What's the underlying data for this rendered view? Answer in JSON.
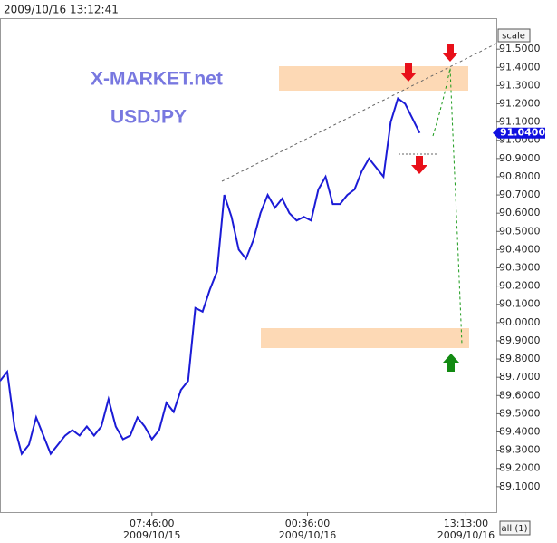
{
  "chart_data": {
    "type": "line",
    "timestamp": "2009/10/16 13:12:41",
    "title": "X-MARKET.net",
    "subtitle": "USDJPY",
    "scale_button": "scale",
    "all_button": "all (1)",
    "price_marker": {
      "value": 91.04,
      "label": "91.0400"
    },
    "series": [
      {
        "name": "USDJPY",
        "color": "#1b1bd6",
        "values": [
          89.68,
          89.73,
          89.43,
          89.28,
          89.33,
          89.48,
          89.38,
          89.28,
          89.33,
          89.38,
          89.41,
          89.38,
          89.43,
          89.38,
          89.43,
          89.58,
          89.43,
          89.36,
          89.38,
          89.48,
          89.43,
          89.36,
          89.41,
          89.56,
          89.51,
          89.63,
          89.68,
          90.08,
          90.06,
          90.18,
          90.28,
          90.7,
          90.58,
          90.4,
          90.35,
          90.45,
          90.6,
          90.7,
          90.63,
          90.68,
          90.6,
          90.56,
          90.58,
          90.56,
          90.73,
          90.8,
          90.65,
          90.65,
          90.7,
          90.73,
          90.83,
          90.9,
          90.85,
          90.8,
          91.1,
          91.23,
          91.2,
          91.12,
          91.04
        ]
      }
    ],
    "xlim": [
      0,
      68.6
    ],
    "xticks": [
      {
        "value": 21,
        "label": "07:46:00"
      },
      {
        "value": 42.5,
        "label": "00:36:00"
      },
      {
        "value": 64.4,
        "label": "13:13:00"
      }
    ],
    "xtick_dates": [
      "2009/10/15",
      "2009/10/16",
      "2009/10/16"
    ],
    "ylim": [
      88.96,
      91.67
    ],
    "yticks": [
      {
        "value": 89.1,
        "label": "89.1000"
      },
      {
        "value": 89.2,
        "label": "89.2000"
      },
      {
        "value": 89.3,
        "label": "89.3000"
      },
      {
        "value": 89.4,
        "label": "89.4000"
      },
      {
        "value": 89.5,
        "label": "89.5000"
      },
      {
        "value": 89.6,
        "label": "89.6000"
      },
      {
        "value": 89.7,
        "label": "89.7000"
      },
      {
        "value": 89.8,
        "label": "89.8000"
      },
      {
        "value": 89.9,
        "label": "89.9000"
      },
      {
        "value": 90.0,
        "label": "90.0000"
      },
      {
        "value": 90.1,
        "label": "90.1000"
      },
      {
        "value": 90.2,
        "label": "90.2000"
      },
      {
        "value": 90.3,
        "label": "90.3000"
      },
      {
        "value": 90.4,
        "label": "90.4000"
      },
      {
        "value": 90.5,
        "label": "90.5000"
      },
      {
        "value": 90.6,
        "label": "90.6000"
      },
      {
        "value": 90.7,
        "label": "90.7000"
      },
      {
        "value": 90.8,
        "label": "90.8000"
      },
      {
        "value": 90.9,
        "label": "90.9000"
      },
      {
        "value": 91.0,
        "label": "91.0000"
      },
      {
        "value": 91.1,
        "label": "91.1000"
      },
      {
        "value": 91.2,
        "label": "91.2000"
      },
      {
        "value": 91.3,
        "label": "91.3000"
      },
      {
        "value": 91.4,
        "label": "91.4000"
      },
      {
        "value": 91.5,
        "label": "91.5000"
      }
    ],
    "grid": false
  }
}
